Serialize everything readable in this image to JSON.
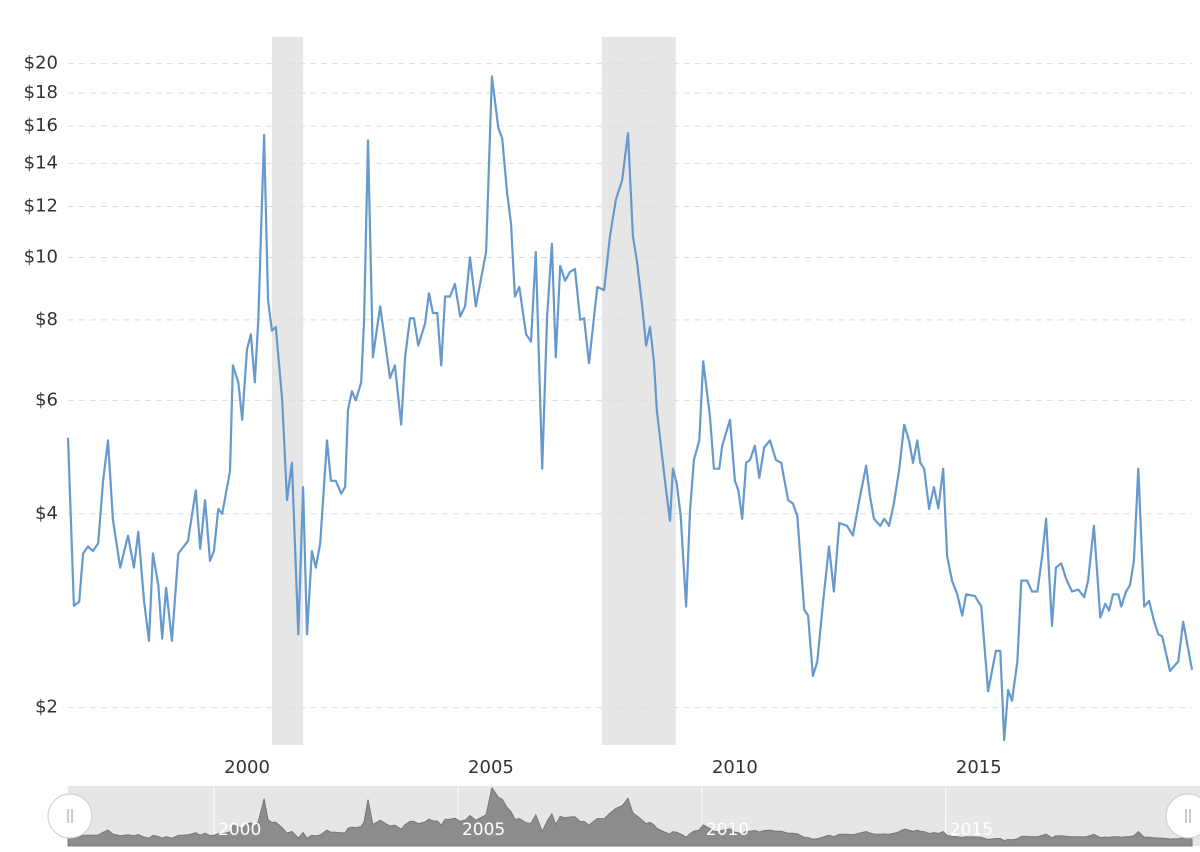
{
  "chart_data": {
    "type": "line",
    "x": [
      1996.33,
      1996.45,
      1996.56,
      1996.64,
      1996.74,
      1996.84,
      1996.95,
      1997.05,
      1997.15,
      1997.25,
      1997.4,
      1997.56,
      1997.68,
      1997.77,
      1997.89,
      1997.99,
      1998.07,
      1998.18,
      1998.26,
      1998.34,
      1998.46,
      1998.59,
      1998.79,
      1998.95,
      1999.04,
      1999.14,
      1999.24,
      1999.32,
      1999.41,
      1999.49,
      1999.65,
      1999.71,
      1999.82,
      1999.9,
      2000.0,
      2000.08,
      2000.16,
      2000.23,
      2000.35,
      2000.43,
      2000.51,
      2000.59,
      2000.72,
      2000.82,
      2000.92,
      2001.05,
      2001.15,
      2001.23,
      2001.33,
      2001.41,
      2001.5,
      2001.64,
      2001.72,
      2001.82,
      2001.93,
      2002.01,
      2002.07,
      2002.15,
      2002.23,
      2002.34,
      2002.4,
      2002.48,
      2002.58,
      2002.73,
      2002.93,
      2003.03,
      2003.16,
      2003.24,
      2003.34,
      2003.42,
      2003.51,
      2003.65,
      2003.73,
      2003.81,
      2003.9,
      2003.98,
      2004.06,
      2004.16,
      2004.26,
      2004.37,
      2004.47,
      2004.57,
      2004.69,
      2004.9,
      2005.02,
      2005.15,
      2005.23,
      2005.33,
      2005.41,
      2005.49,
      2005.58,
      2005.72,
      2005.82,
      2005.92,
      2006.05,
      2006.15,
      2006.25,
      2006.33,
      2006.42,
      2006.52,
      2006.62,
      2006.72,
      2006.83,
      2006.91,
      2007.01,
      2007.18,
      2007.32,
      2007.44,
      2007.56,
      2007.69,
      2007.81,
      2007.91,
      2007.99,
      2008.1,
      2008.18,
      2008.26,
      2008.34,
      2008.4,
      2008.51,
      2008.59,
      2008.67,
      2008.73,
      2008.81,
      2008.89,
      2009.0,
      2009.08,
      2009.16,
      2009.27,
      2009.35,
      2009.49,
      2009.57,
      2009.68,
      2009.74,
      2009.9,
      2010.0,
      2010.07,
      2010.15,
      2010.23,
      2010.31,
      2010.41,
      2010.5,
      2010.6,
      2010.72,
      2010.84,
      2010.95,
      2011.09,
      2011.19,
      2011.28,
      2011.42,
      2011.5,
      2011.6,
      2011.69,
      2011.81,
      2011.93,
      2012.03,
      2012.14,
      2012.3,
      2012.42,
      2012.55,
      2012.69,
      2012.77,
      2012.85,
      2012.98,
      2013.06,
      2013.16,
      2013.26,
      2013.37,
      2013.47,
      2013.57,
      2013.65,
      2013.74,
      2013.8,
      2013.88,
      2013.98,
      2014.08,
      2014.17,
      2014.27,
      2014.35,
      2014.45,
      2014.56,
      2014.66,
      2014.74,
      2014.92,
      2015.05,
      2015.19,
      2015.27,
      2015.35,
      2015.44,
      2015.52,
      2015.6,
      2015.68,
      2015.79,
      2015.87,
      2015.99,
      2016.09,
      2016.2,
      2016.3,
      2016.38,
      2016.5,
      2016.58,
      2016.69,
      2016.79,
      2016.91,
      2017.04,
      2017.16,
      2017.24,
      2017.36,
      2017.49,
      2017.59,
      2017.67,
      2017.75,
      2017.86,
      2017.92,
      2018.02,
      2018.1,
      2018.18,
      2018.27,
      2018.39,
      2018.49,
      2018.59,
      2018.68,
      2018.76,
      2018.92,
      2019.09,
      2019.19,
      2019.37
    ],
    "values": [
      5.25,
      2.88,
      2.92,
      3.47,
      3.56,
      3.5,
      3.6,
      4.5,
      5.2,
      3.92,
      3.3,
      3.7,
      3.3,
      3.75,
      2.92,
      2.54,
      3.47,
      3.1,
      2.56,
      3.07,
      2.54,
      3.47,
      3.63,
      4.35,
      3.53,
      4.2,
      3.38,
      3.5,
      4.07,
      4.0,
      4.66,
      6.8,
      6.4,
      5.6,
      7.2,
      7.6,
      6.4,
      8.0,
      15.5,
      8.6,
      7.7,
      7.8,
      6.0,
      4.2,
      4.8,
      2.6,
      4.4,
      2.6,
      3.5,
      3.3,
      3.6,
      5.2,
      4.5,
      4.5,
      4.3,
      4.4,
      5.8,
      6.2,
      6.0,
      6.4,
      8.0,
      15.2,
      7.0,
      8.4,
      6.5,
      6.8,
      5.5,
      7.0,
      8.05,
      8.05,
      7.3,
      7.9,
      8.8,
      8.2,
      8.2,
      6.8,
      8.7,
      8.7,
      9.1,
      8.1,
      8.4,
      10.0,
      8.4,
      10.2,
      19.1,
      15.9,
      15.3,
      12.6,
      11.3,
      8.7,
      9.0,
      7.6,
      7.4,
      10.2,
      4.7,
      8.1,
      10.5,
      7.0,
      9.7,
      9.2,
      9.5,
      9.6,
      8.0,
      8.05,
      6.85,
      9.0,
      8.9,
      10.8,
      12.3,
      13.2,
      15.6,
      10.8,
      9.9,
      8.4,
      7.3,
      7.8,
      6.9,
      5.8,
      4.9,
      4.35,
      3.9,
      4.7,
      4.45,
      3.97,
      2.87,
      4.04,
      4.85,
      5.2,
      6.9,
      5.66,
      4.7,
      4.7,
      5.1,
      5.6,
      4.5,
      4.35,
      3.93,
      4.8,
      4.85,
      5.1,
      4.55,
      5.07,
      5.2,
      4.85,
      4.8,
      4.2,
      4.15,
      3.97,
      2.84,
      2.78,
      2.24,
      2.36,
      2.93,
      3.56,
      3.03,
      3.87,
      3.83,
      3.7,
      4.2,
      4.75,
      4.26,
      3.93,
      3.83,
      3.93,
      3.83,
      4.15,
      4.7,
      5.5,
      5.2,
      4.8,
      5.2,
      4.8,
      4.7,
      4.07,
      4.4,
      4.08,
      4.7,
      3.44,
      3.15,
      3.0,
      2.78,
      3.0,
      2.98,
      2.87,
      2.12,
      2.28,
      2.45,
      2.45,
      1.78,
      2.13,
      2.05,
      2.36,
      3.15,
      3.15,
      3.03,
      3.03,
      3.44,
      3.93,
      2.68,
      3.3,
      3.35,
      3.17,
      3.03,
      3.05,
      2.97,
      3.15,
      3.83,
      2.76,
      2.9,
      2.83,
      3.0,
      3.0,
      2.87,
      3.03,
      3.1,
      3.38,
      4.7,
      2.87,
      2.93,
      2.73,
      2.6,
      2.58,
      2.28,
      2.36,
      2.72,
      2.29
    ],
    "color": "#6699cc",
    "shaded_ranges": [
      [
        2000.51,
        2001.15
      ],
      [
        2007.27,
        2008.79
      ]
    ],
    "xlim": [
      1996.33,
      2019.37
    ],
    "xticks": [
      2000,
      2005,
      2010,
      2015
    ],
    "ylim": [
      1.75,
      22
    ],
    "log_scale": true,
    "yticks": [
      {
        "value": 2,
        "label": "$2"
      },
      {
        "value": 4,
        "label": "$4"
      },
      {
        "value": 6,
        "label": "$6"
      },
      {
        "value": 8,
        "label": "$8"
      },
      {
        "value": 10,
        "label": "$10"
      },
      {
        "value": 12,
        "label": "$12"
      },
      {
        "value": 14,
        "label": "$14"
      },
      {
        "value": 16,
        "label": "$16"
      },
      {
        "value": 18,
        "label": "$18"
      },
      {
        "value": 20,
        "label": "$20"
      }
    ],
    "grid": true
  }
}
